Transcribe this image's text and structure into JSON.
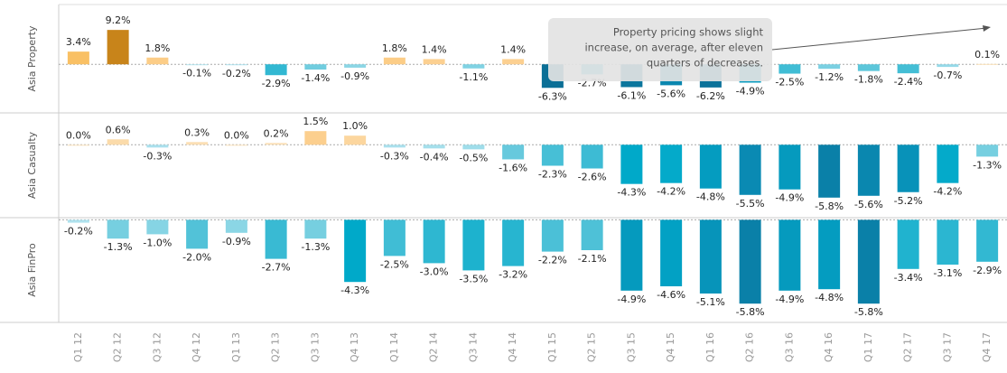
{
  "chart_data": {
    "type": "bar",
    "categories": [
      "Q1 12",
      "Q2 12",
      "Q3 12",
      "Q4 12",
      "Q1 13",
      "Q2 13",
      "Q3 13",
      "Q4 13",
      "Q1 14",
      "Q2 14",
      "Q3 14",
      "Q4 14",
      "Q1 15",
      "Q2 15",
      "Q3 15",
      "Q4 15",
      "Q1 16",
      "Q2 16",
      "Q3 16",
      "Q4 16",
      "Q1 17",
      "Q2 17",
      "Q3 17",
      "Q4 17"
    ],
    "series": [
      {
        "name": "Asia  Property",
        "ylim": [
          -13,
          16
        ],
        "values": [
          3.4,
          9.2,
          1.8,
          -0.1,
          -0.2,
          -2.9,
          -1.4,
          -0.9,
          1.8,
          1.4,
          -1.1,
          1.4,
          -6.3,
          -2.7,
          -6.1,
          -5.6,
          -6.2,
          -4.9,
          -2.5,
          -1.2,
          -1.8,
          -2.4,
          -0.7,
          0.1
        ],
        "value_labels": [
          "3.4%",
          "9.2%",
          "1.8%",
          "-0.1%",
          "-0.2%",
          "-2.9%",
          "-1.4%",
          "-0.9%",
          "1.8%",
          "1.4%",
          "-1.1%",
          "1.4%",
          "-6.3%",
          "-2.7%",
          "-6.1%",
          "-5.6%",
          "-6.2%",
          "-4.9%",
          "-2.5%",
          "-1.2%",
          "-1.8%",
          "-2.4%",
          "-0.7%",
          "0.1%"
        ]
      },
      {
        "name": "Asia Casualty",
        "ylim": [
          -8,
          3.5
        ],
        "values": [
          0.0,
          0.6,
          -0.3,
          0.3,
          0.0,
          0.2,
          1.5,
          1.0,
          -0.3,
          -0.4,
          -0.5,
          -1.6,
          -2.3,
          -2.6,
          -4.3,
          -4.2,
          -4.8,
          -5.5,
          -4.9,
          -5.8,
          -5.6,
          -5.2,
          -4.2,
          -1.3
        ],
        "value_labels": [
          "0.0%",
          "0.6%",
          "-0.3%",
          "0.3%",
          "0.0%",
          "0.2%",
          "1.5%",
          "1.0%",
          "-0.3%",
          "-0.4%",
          "-0.5%",
          "-1.6%",
          "-2.3%",
          "-2.6%",
          "-4.3%",
          "-4.2%",
          "-4.8%",
          "-5.5%",
          "-4.9%",
          "-5.8%",
          "-5.6%",
          "-5.2%",
          "-4.2%",
          "-1.3%"
        ]
      },
      {
        "name": "Asia FinPro",
        "ylim": [
          -7.1,
          0.15
        ],
        "values": [
          -0.2,
          -1.3,
          -1.0,
          -2.0,
          -0.9,
          -2.7,
          -1.3,
          -4.3,
          -2.5,
          -3.0,
          -3.5,
          -3.2,
          -2.2,
          -2.1,
          -4.9,
          -4.6,
          -5.1,
          -5.8,
          -4.9,
          -4.8,
          -5.8,
          -3.4,
          -3.1,
          -2.9
        ],
        "value_labels": [
          "-0.2%",
          "-1.3%",
          "-1.0%",
          "-2.0%",
          "-0.9%",
          "-2.7%",
          "-1.3%",
          "-4.3%",
          "-2.5%",
          "-3.0%",
          "-3.5%",
          "-3.2%",
          "-2.2%",
          "-2.1%",
          "-4.9%",
          "-4.6%",
          "-5.1%",
          "-5.8%",
          "-4.9%",
          "-4.8%",
          "-5.8%",
          "-3.4%",
          "-3.1%",
          "-2.9%"
        ]
      }
    ],
    "color_scale": [
      {
        "value": -6.3,
        "color": "#0b6f96"
      },
      {
        "value": -5.5,
        "color": "#0a8ab3"
      },
      {
        "value": -4.3,
        "color": "#00a9c9"
      },
      {
        "value": -2,
        "color": "#52c2d8"
      },
      {
        "value": -0.1,
        "color": "#b4e4ef"
      },
      {
        "value": 0,
        "color": "#fbe3bd"
      },
      {
        "value": 1.5,
        "color": "#fccf8e"
      },
      {
        "value": 3.4,
        "color": "#f9c064"
      },
      {
        "value": 9.2,
        "color": "#c8841a"
      }
    ],
    "annotation": [
      "Property pricing shows slight",
      "increase, on average, after eleven",
      "quarters of decreases."
    ]
  }
}
